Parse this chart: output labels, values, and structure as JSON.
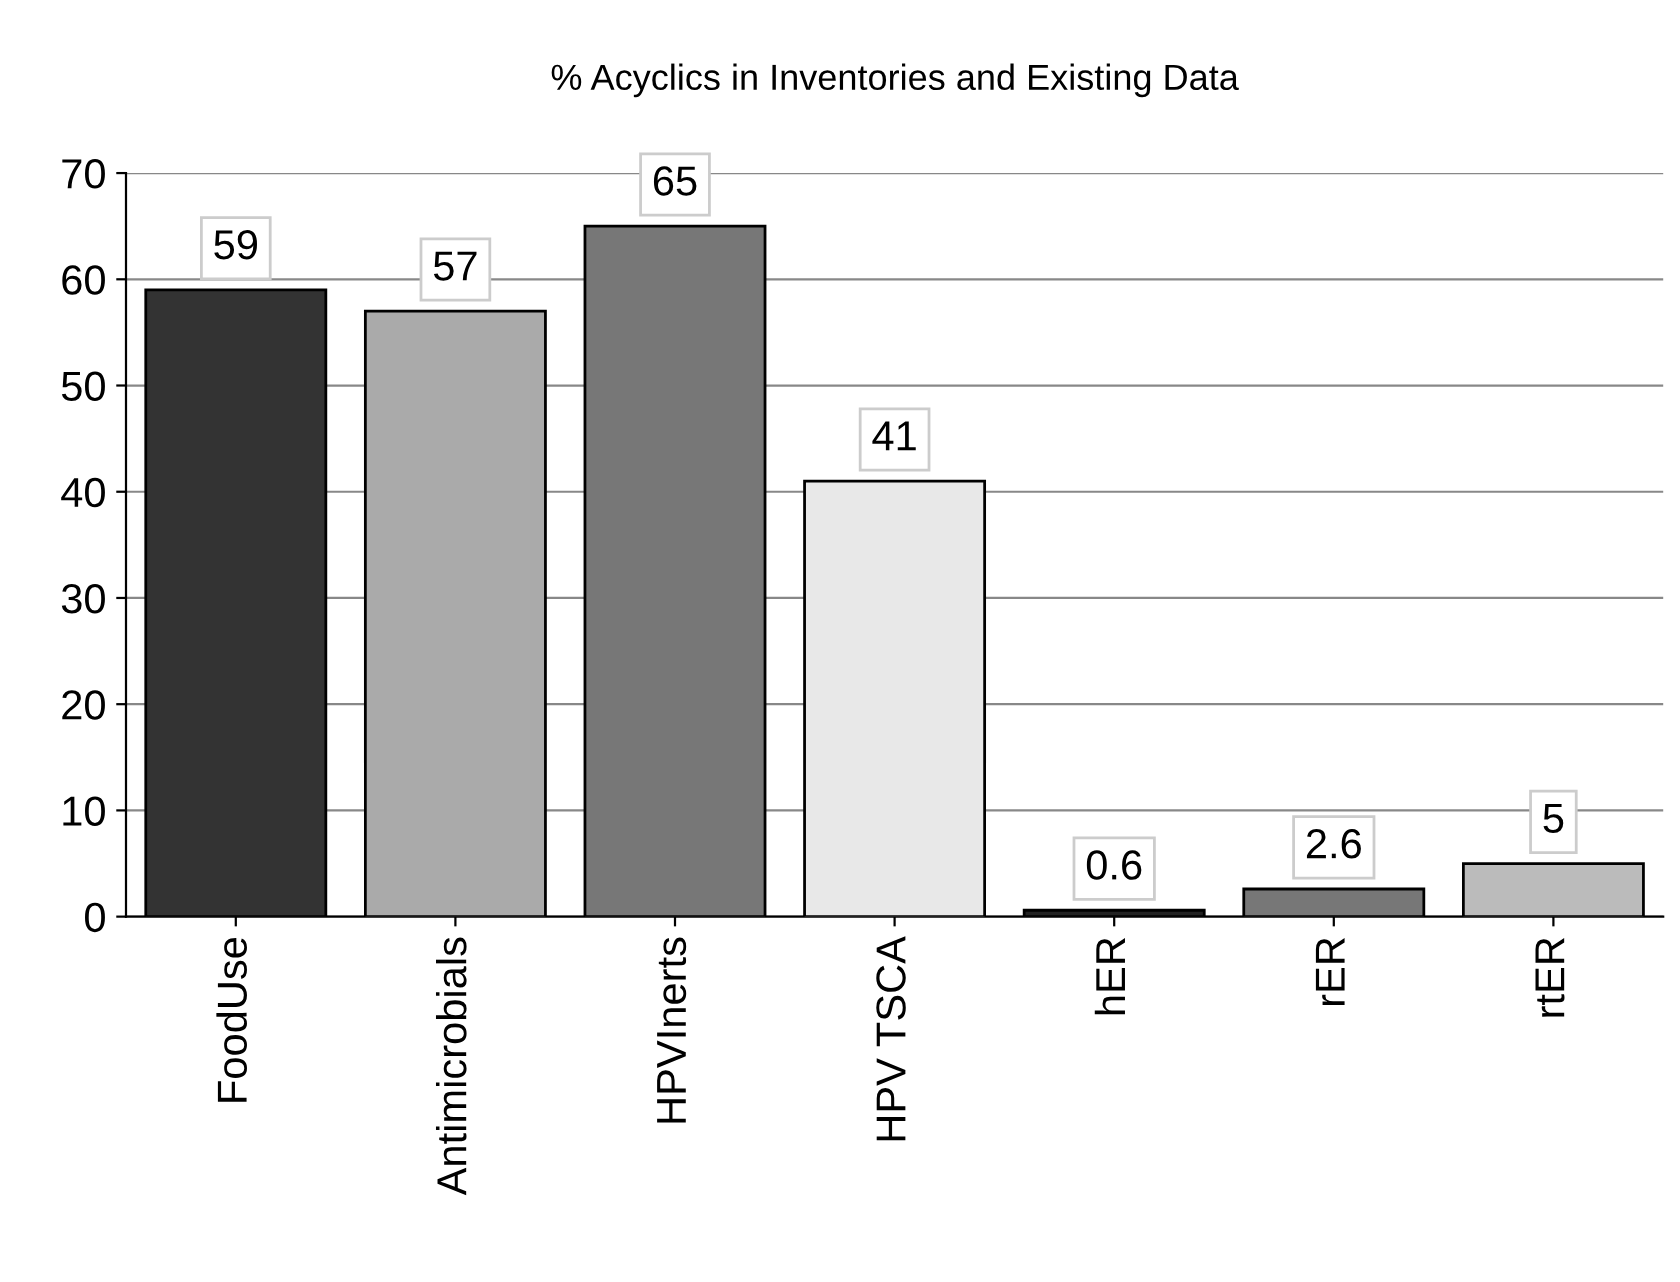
{
  "chart_data": {
    "type": "bar",
    "title": "% Acyclics in Inventories and Existing Data",
    "categories": [
      "FoodUse",
      "Antimicrobials",
      "HPVInerts",
      "HPV TSCA",
      "hER",
      "rER",
      "rtER"
    ],
    "values": [
      59,
      57,
      65,
      41,
      0.6,
      2.6,
      5
    ],
    "colors": [
      "#333333",
      "#aaaaaa",
      "#777777",
      "#e8e8e8",
      "#222222",
      "#777777",
      "#bbbbbb"
    ],
    "ylim": [
      0,
      70
    ],
    "yticks": [
      0,
      10,
      20,
      30,
      40,
      50,
      60,
      70
    ],
    "grid": "y",
    "data_labels": true
  }
}
